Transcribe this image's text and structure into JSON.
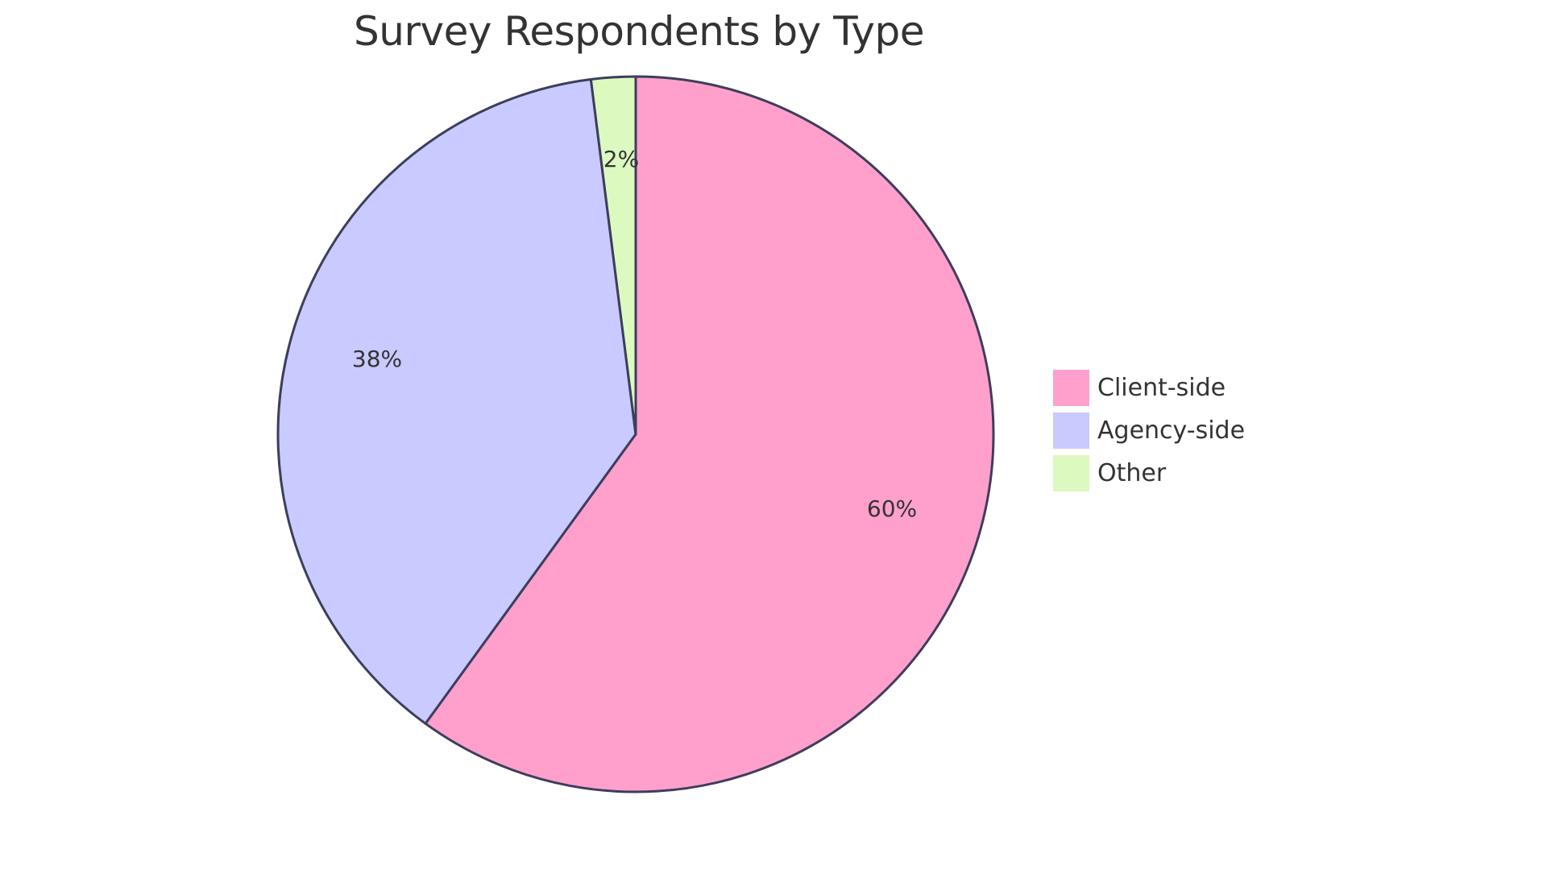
{
  "chart_data": {
    "type": "pie",
    "title": "Survey Respondents by Type",
    "categories": [
      "Client-side",
      "Agency-side",
      "Other"
    ],
    "values": [
      60,
      38,
      2
    ],
    "unit": "%",
    "labels": [
      "60%",
      "38%",
      "2%"
    ],
    "colors": [
      "#ffa0cc",
      "#c9caff",
      "#dcfac0"
    ],
    "stroke_color": "#3d3d5c",
    "legend_position": "right"
  },
  "title": "Survey Respondents by Type",
  "legend": {
    "items": [
      {
        "label": "Client-side",
        "color": "#ffa0cc"
      },
      {
        "label": "Agency-side",
        "color": "#c9caff"
      },
      {
        "label": "Other",
        "color": "#dcfac0"
      }
    ]
  },
  "slice_labels": [
    "60%",
    "38%",
    "2%"
  ]
}
